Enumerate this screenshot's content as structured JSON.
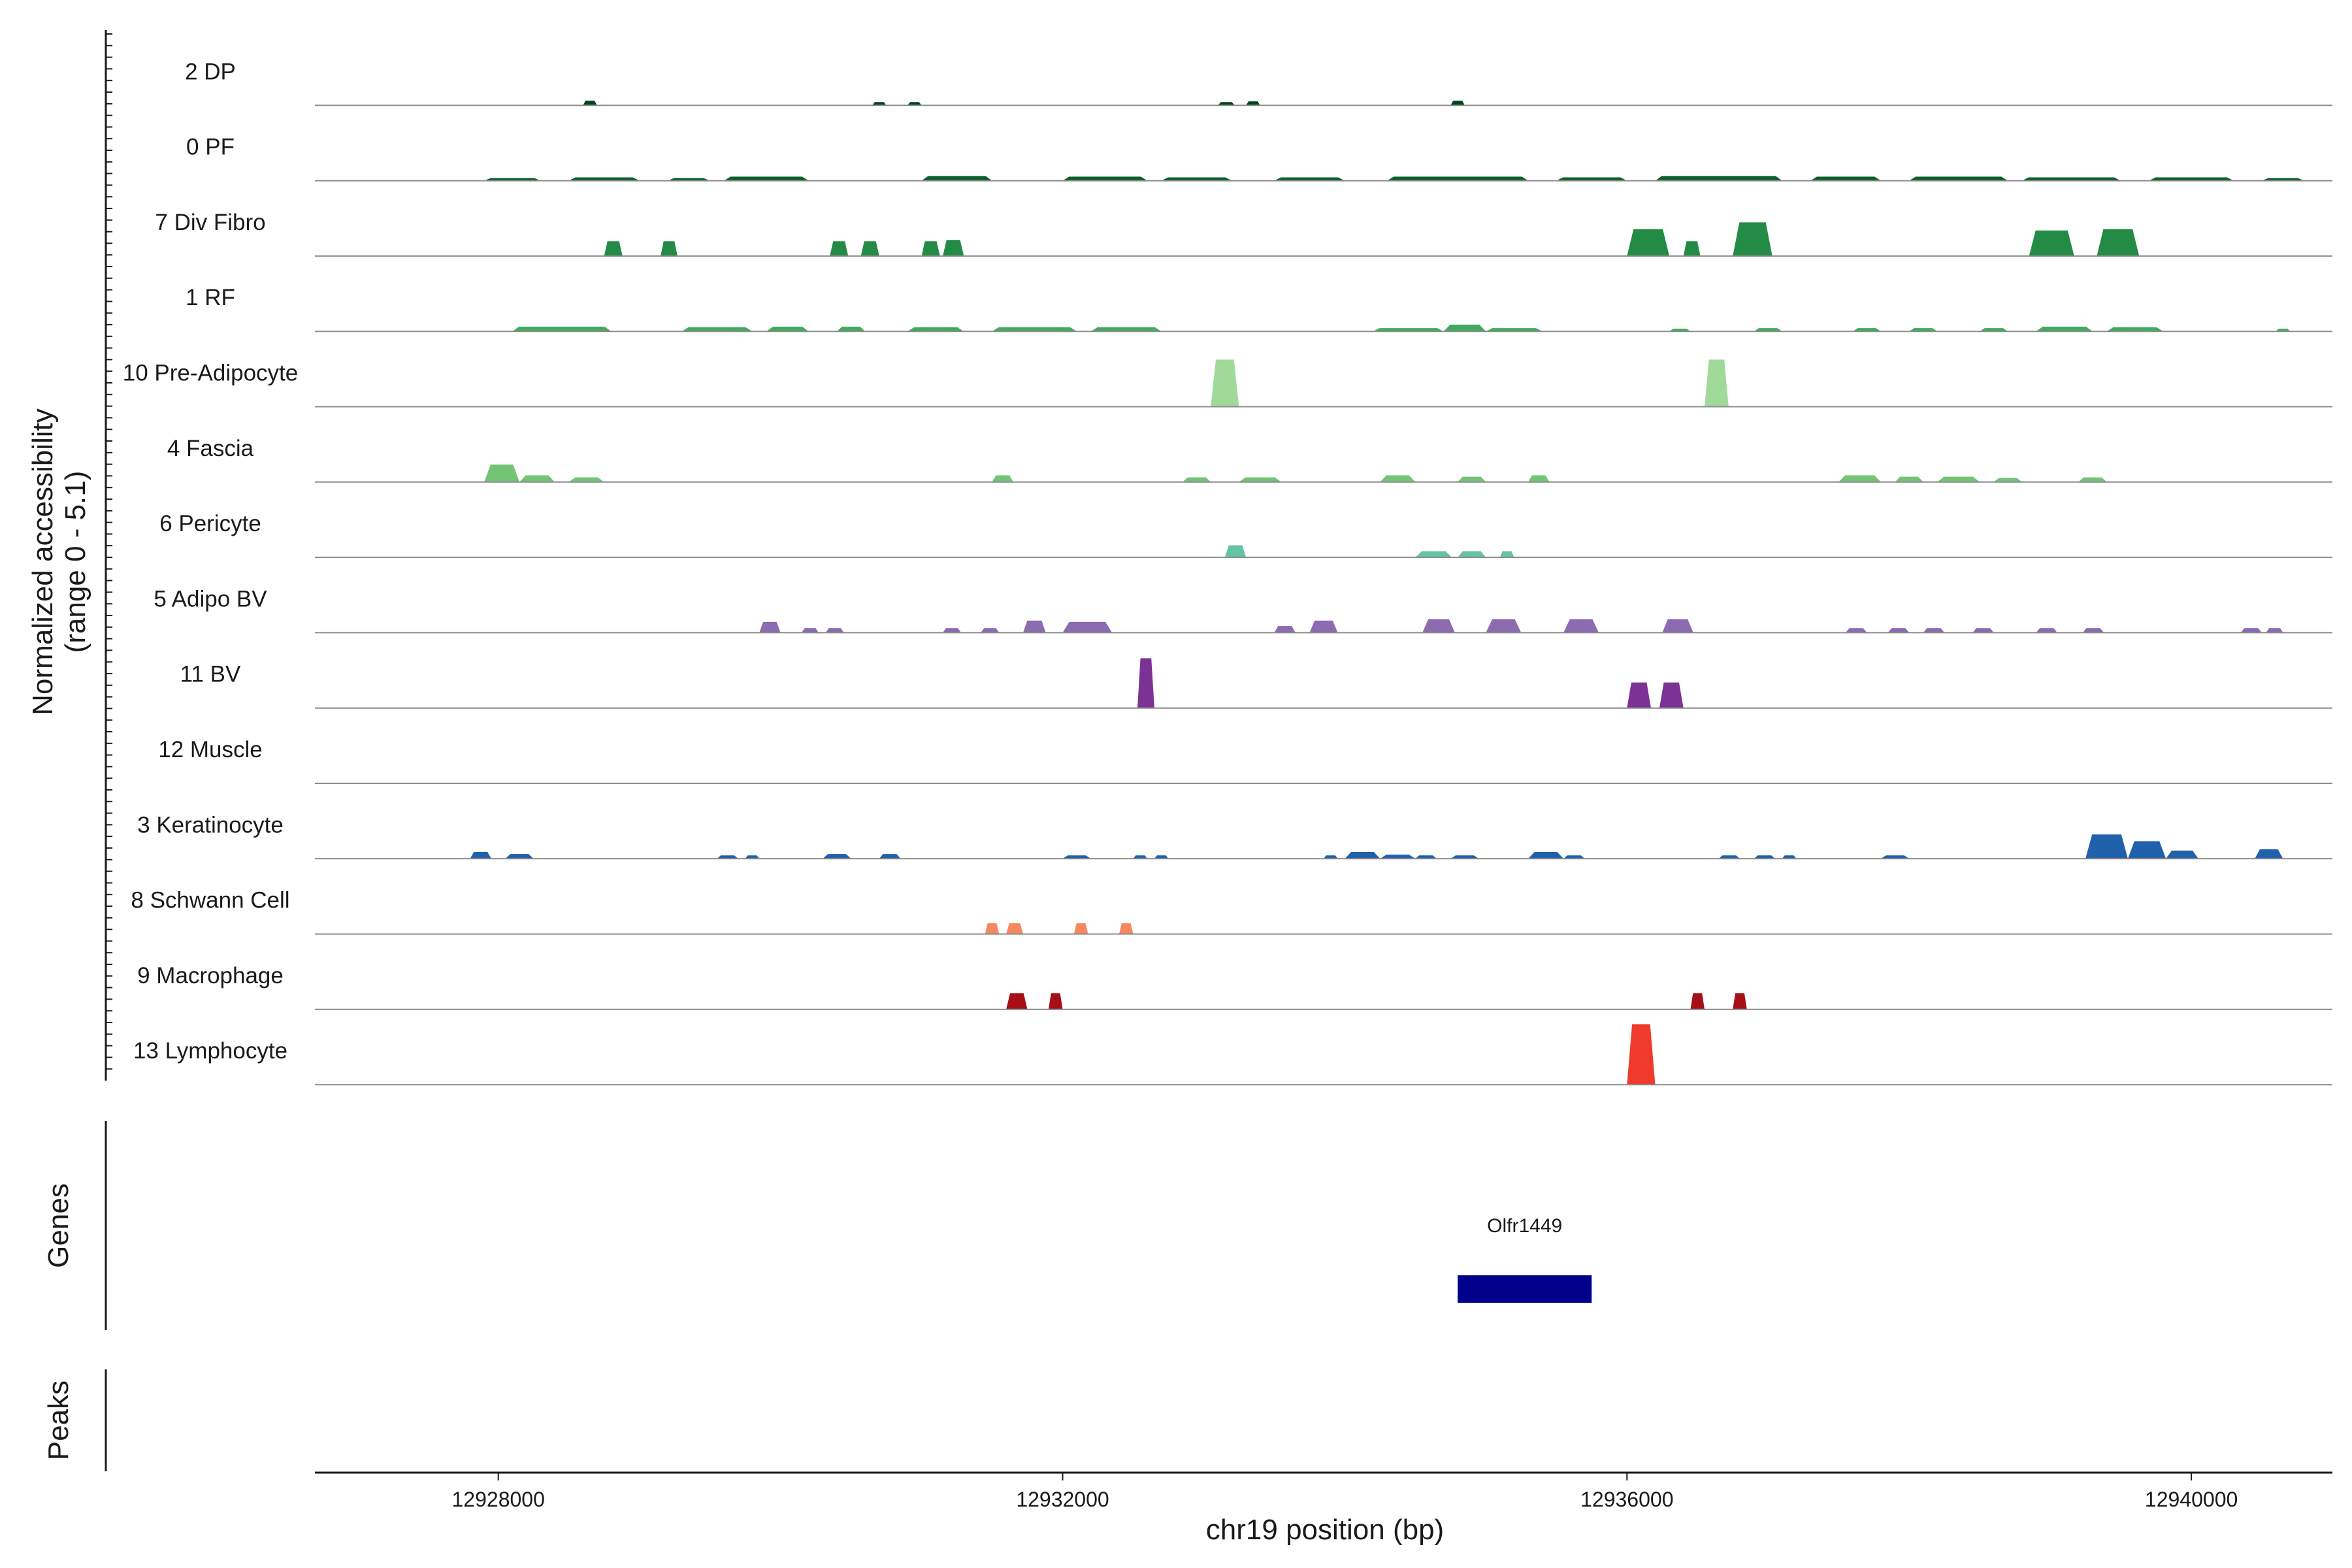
{
  "chart_data": {
    "type": "area",
    "ylabel_line1": "Normalized accessibility",
    "ylabel_line2": "(range 0 - 5.1)",
    "y_range": [
      0,
      5.1
    ],
    "xlabel": "chr19 position (bp)",
    "x_range": [
      12926700,
      12941000
    ],
    "x_ticks": [
      12928000,
      12932000,
      12936000,
      12940000
    ],
    "x_tick_labels": [
      "12928000",
      "12932000",
      "12936000",
      "12940000"
    ],
    "genes_label": "Genes",
    "peaks_label": "Peaks",
    "genes": [
      {
        "name": "Olfr1449",
        "start": 12934800,
        "end": 12935750,
        "color": "#00008b"
      }
    ],
    "tracks": [
      {
        "name": "2 DP",
        "color": "#00441b",
        "peaks": [
          [
            12928600,
            12928700,
            0.35
          ],
          [
            12930650,
            12930750,
            0.25
          ],
          [
            12930900,
            12931000,
            0.25
          ],
          [
            12933100,
            12933220,
            0.25
          ],
          [
            12933300,
            12933400,
            0.3
          ],
          [
            12934750,
            12934850,
            0.35
          ]
        ]
      },
      {
        "name": "0 PF",
        "color": "#0b5e2b",
        "peaks": [
          [
            12927900,
            12928300,
            0.2
          ],
          [
            12928500,
            12929000,
            0.25
          ],
          [
            12929200,
            12929500,
            0.2
          ],
          [
            12929600,
            12930200,
            0.3
          ],
          [
            12931000,
            12931500,
            0.35
          ],
          [
            12932000,
            12932600,
            0.3
          ],
          [
            12932700,
            12933200,
            0.25
          ],
          [
            12933500,
            12934000,
            0.25
          ],
          [
            12934300,
            12935300,
            0.3
          ],
          [
            12935500,
            12936000,
            0.25
          ],
          [
            12936200,
            12937100,
            0.35
          ],
          [
            12937300,
            12937800,
            0.3
          ],
          [
            12938000,
            12938700,
            0.3
          ],
          [
            12938800,
            12939500,
            0.25
          ],
          [
            12939700,
            12940300,
            0.25
          ],
          [
            12940500,
            12940800,
            0.2
          ]
        ]
      },
      {
        "name": "7 Div Fibro",
        "color": "#238b45",
        "peaks": [
          [
            12928750,
            12928880,
            1.1
          ],
          [
            12929150,
            12929270,
            1.1
          ],
          [
            12930350,
            12930480,
            1.1
          ],
          [
            12930570,
            12930700,
            1.1
          ],
          [
            12931000,
            12931130,
            1.1
          ],
          [
            12931150,
            12931300,
            1.2
          ],
          [
            12936000,
            12936300,
            2.0
          ],
          [
            12936400,
            12936520,
            1.1
          ],
          [
            12936750,
            12937030,
            2.5
          ],
          [
            12938850,
            12939170,
            1.9
          ],
          [
            12939330,
            12939630,
            2.0
          ]
        ]
      },
      {
        "name": "1 RF",
        "color": "#41ab5d",
        "peaks": [
          [
            12928100,
            12928800,
            0.35
          ],
          [
            12929300,
            12929800,
            0.3
          ],
          [
            12929900,
            12930200,
            0.35
          ],
          [
            12930400,
            12930600,
            0.35
          ],
          [
            12930900,
            12931300,
            0.3
          ],
          [
            12931500,
            12932100,
            0.3
          ],
          [
            12932200,
            12932700,
            0.3
          ],
          [
            12934200,
            12934700,
            0.25
          ],
          [
            12934700,
            12935000,
            0.5
          ],
          [
            12935000,
            12935400,
            0.25
          ],
          [
            12936300,
            12936450,
            0.2
          ],
          [
            12936900,
            12937100,
            0.25
          ],
          [
            12937600,
            12937800,
            0.25
          ],
          [
            12938000,
            12938200,
            0.25
          ],
          [
            12938500,
            12938700,
            0.25
          ],
          [
            12938900,
            12939300,
            0.35
          ],
          [
            12939400,
            12939800,
            0.3
          ],
          [
            12940600,
            12940700,
            0.2
          ]
        ]
      },
      {
        "name": "10 Pre-Adipocyte",
        "color": "#a1d99b",
        "peaks": [
          [
            12933050,
            12933250,
            3.5
          ],
          [
            12936550,
            12936720,
            3.5
          ]
        ]
      },
      {
        "name": "4 Fascia",
        "color": "#74c476",
        "peaks": [
          [
            12927900,
            12928150,
            1.3
          ],
          [
            12928150,
            12928400,
            0.5
          ],
          [
            12928500,
            12928750,
            0.35
          ],
          [
            12931500,
            12931650,
            0.5
          ],
          [
            12932850,
            12933050,
            0.35
          ],
          [
            12933250,
            12933550,
            0.35
          ],
          [
            12934250,
            12934500,
            0.5
          ],
          [
            12934800,
            12935000,
            0.4
          ],
          [
            12935300,
            12935450,
            0.5
          ],
          [
            12937500,
            12937800,
            0.5
          ],
          [
            12937900,
            12938100,
            0.4
          ],
          [
            12938200,
            12938500,
            0.4
          ],
          [
            12938600,
            12938800,
            0.3
          ],
          [
            12939200,
            12939400,
            0.35
          ]
        ]
      },
      {
        "name": "6 Pericyte",
        "color": "#66c2a4",
        "peaks": [
          [
            12933150,
            12933300,
            0.9
          ],
          [
            12934500,
            12934760,
            0.45
          ],
          [
            12934800,
            12935000,
            0.45
          ],
          [
            12935100,
            12935200,
            0.45
          ]
        ]
      },
      {
        "name": "5 Adipo BV",
        "color": "#8c6bb1",
        "peaks": [
          [
            12929850,
            12930000,
            0.8
          ],
          [
            12930150,
            12930270,
            0.35
          ],
          [
            12930320,
            12930450,
            0.35
          ],
          [
            12931150,
            12931280,
            0.35
          ],
          [
            12931420,
            12931550,
            0.35
          ],
          [
            12931720,
            12931880,
            0.9
          ],
          [
            12932000,
            12932350,
            0.8
          ],
          [
            12933500,
            12933650,
            0.5
          ],
          [
            12933750,
            12933950,
            0.9
          ],
          [
            12934550,
            12934780,
            1.0
          ],
          [
            12935000,
            12935250,
            1.0
          ],
          [
            12935550,
            12935800,
            1.0
          ],
          [
            12936250,
            12936470,
            1.0
          ],
          [
            12937550,
            12937700,
            0.35
          ],
          [
            12937850,
            12938000,
            0.35
          ],
          [
            12938100,
            12938250,
            0.35
          ],
          [
            12938450,
            12938600,
            0.35
          ],
          [
            12938900,
            12939050,
            0.35
          ],
          [
            12939230,
            12939380,
            0.35
          ],
          [
            12940350,
            12940500,
            0.35
          ],
          [
            12940530,
            12940650,
            0.35
          ]
        ]
      },
      {
        "name": "11 BV",
        "color": "#7b3294",
        "peaks": [
          [
            12932530,
            12932650,
            3.7
          ],
          [
            12936000,
            12936170,
            1.9
          ],
          [
            12936230,
            12936400,
            1.9
          ]
        ]
      },
      {
        "name": "12 Muscle",
        "color": "#6a51a3",
        "peaks": []
      },
      {
        "name": "3 Keratinocyte",
        "color": "#2161ac",
        "peaks": [
          [
            12927800,
            12927950,
            0.5
          ],
          [
            12928050,
            12928250,
            0.35
          ],
          [
            12929550,
            12929700,
            0.25
          ],
          [
            12929750,
            12929850,
            0.25
          ],
          [
            12930300,
            12930500,
            0.35
          ],
          [
            12930700,
            12930850,
            0.35
          ],
          [
            12932000,
            12932200,
            0.25
          ],
          [
            12932500,
            12932600,
            0.25
          ],
          [
            12932650,
            12932750,
            0.25
          ],
          [
            12933850,
            12933950,
            0.25
          ],
          [
            12934000,
            12934250,
            0.5
          ],
          [
            12934250,
            12934500,
            0.3
          ],
          [
            12934500,
            12934650,
            0.25
          ],
          [
            12934750,
            12934950,
            0.25
          ],
          [
            12935300,
            12935550,
            0.5
          ],
          [
            12935550,
            12935700,
            0.25
          ],
          [
            12936650,
            12936800,
            0.25
          ],
          [
            12936900,
            12937050,
            0.25
          ],
          [
            12937100,
            12937200,
            0.25
          ],
          [
            12937800,
            12938000,
            0.25
          ],
          [
            12939250,
            12939550,
            1.8
          ],
          [
            12939550,
            12939820,
            1.3
          ],
          [
            12939820,
            12940050,
            0.6
          ],
          [
            12940450,
            12940650,
            0.7
          ]
        ]
      },
      {
        "name": "8 Schwann Cell",
        "color": "#f4895f",
        "peaks": [
          [
            12931450,
            12931550,
            0.8
          ],
          [
            12931600,
            12931720,
            0.8
          ],
          [
            12932080,
            12932180,
            0.8
          ],
          [
            12932400,
            12932500,
            0.8
          ]
        ]
      },
      {
        "name": "9 Macrophage",
        "color": "#a50f15",
        "peaks": [
          [
            12931600,
            12931750,
            1.2
          ],
          [
            12931900,
            12932000,
            1.2
          ],
          [
            12936450,
            12936550,
            1.2
          ],
          [
            12936750,
            12936850,
            1.2
          ]
        ]
      },
      {
        "name": "13 Lymphocyte",
        "color": "#ef3b2c",
        "peaks": [
          [
            12936000,
            12936200,
            4.5
          ]
        ]
      }
    ]
  }
}
